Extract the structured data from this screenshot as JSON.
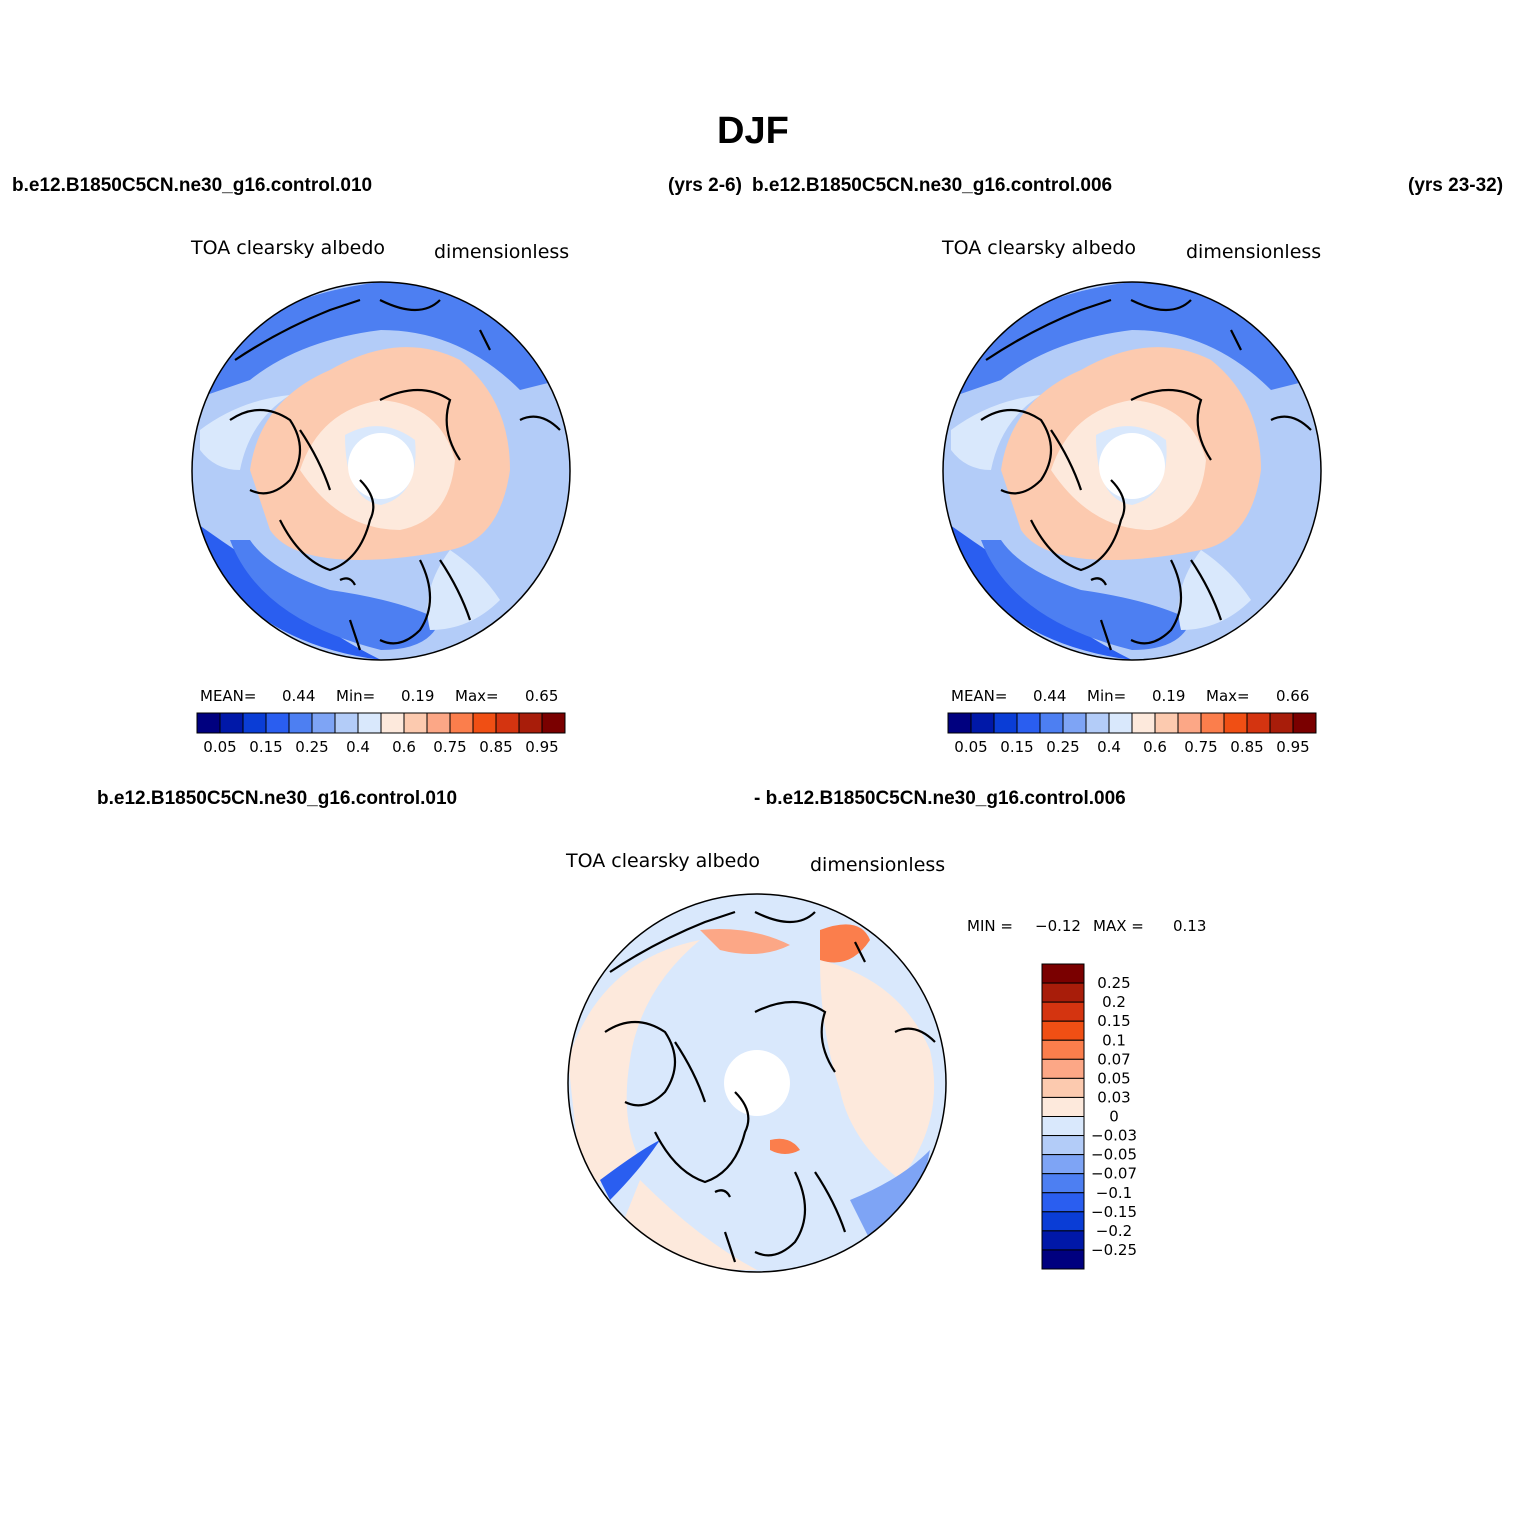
{
  "page": {
    "title": "DJF",
    "case1_label": "b.e12.B1850C5CN.ne30_g16.control.010",
    "case1_years": "(yrs 2-6)",
    "case2_label": "b.e12.B1850C5CN.ne30_g16.control.006",
    "case2_years": "(yrs 23-32)",
    "diff_case1": "b.e12.B1850C5CN.ne30_g16.control.010",
    "diff_case2": "- b.e12.B1850C5CN.ne30_g16.control.006"
  },
  "chart_data": [
    {
      "type": "heatmap",
      "projection": "north-polar-stereographic",
      "variable": "TOA clearsky albedo",
      "units": "dimensionless",
      "stats": {
        "mean_label": "MEAN=",
        "mean": "0.44",
        "min_label": "Min=",
        "min": "0.19",
        "max_label": "Max=",
        "max": "0.65"
      },
      "contour_levels": [
        0.05,
        0.1,
        0.15,
        0.2,
        0.25,
        0.3,
        0.4,
        0.5,
        0.6,
        0.7,
        0.75,
        0.8,
        0.85,
        0.9,
        0.95
      ],
      "colorbar_tick_labels": [
        "0.05",
        "0.15",
        "0.25",
        "0.4",
        "0.6",
        "0.75",
        "0.85",
        "0.95"
      ],
      "colorbar_colors": [
        "#00007f",
        "#0018a8",
        "#0a3dd6",
        "#2a5ef0",
        "#4d7ff2",
        "#7ea4f5",
        "#b3ccf8",
        "#d9e8fc",
        "#fde9dc",
        "#fccaaf",
        "#fca786",
        "#fb7e4c",
        "#f04f14",
        "#d43410",
        "#a81d0a",
        "#7a0000"
      ]
    },
    {
      "type": "heatmap",
      "projection": "north-polar-stereographic",
      "variable": "TOA clearsky albedo",
      "units": "dimensionless",
      "stats": {
        "mean_label": "MEAN=",
        "mean": "0.44",
        "min_label": "Min=",
        "min": "0.19",
        "max_label": "Max=",
        "max": "0.66"
      },
      "contour_levels": [
        0.05,
        0.1,
        0.15,
        0.2,
        0.25,
        0.3,
        0.4,
        0.5,
        0.6,
        0.7,
        0.75,
        0.8,
        0.85,
        0.9,
        0.95
      ],
      "colorbar_tick_labels": [
        "0.05",
        "0.15",
        "0.25",
        "0.4",
        "0.6",
        "0.75",
        "0.85",
        "0.95"
      ],
      "colorbar_colors": [
        "#00007f",
        "#0018a8",
        "#0a3dd6",
        "#2a5ef0",
        "#4d7ff2",
        "#7ea4f5",
        "#b3ccf8",
        "#d9e8fc",
        "#fde9dc",
        "#fccaaf",
        "#fca786",
        "#fb7e4c",
        "#f04f14",
        "#d43410",
        "#a81d0a",
        "#7a0000"
      ]
    },
    {
      "type": "heatmap",
      "projection": "north-polar-stereographic",
      "variable": "TOA clearsky albedo",
      "units": "dimensionless",
      "stats": {
        "min_label": "MIN =",
        "min": "−0.12",
        "max_label": "MAX =",
        "max": "0.13"
      },
      "contour_levels": [
        -0.25,
        -0.2,
        -0.15,
        -0.1,
        -0.07,
        -0.05,
        -0.03,
        0,
        0.03,
        0.05,
        0.07,
        0.1,
        0.15,
        0.2,
        0.25
      ],
      "colorbar_tick_labels": [
        "0.25",
        "0.2",
        "0.15",
        "0.1",
        "0.07",
        "0.05",
        "0.03",
        "0",
        "−0.03",
        "−0.05",
        "−0.07",
        "−0.1",
        "−0.15",
        "−0.2",
        "−0.25"
      ],
      "colorbar_colors": [
        "#7a0000",
        "#a81d0a",
        "#d43410",
        "#f04f14",
        "#fb7e4c",
        "#fca786",
        "#fccaaf",
        "#fde9dc",
        "#d9e8fc",
        "#b3ccf8",
        "#7ea4f5",
        "#4d7ff2",
        "#2a5ef0",
        "#0a3dd6",
        "#0018a8",
        "#00007f"
      ]
    }
  ]
}
